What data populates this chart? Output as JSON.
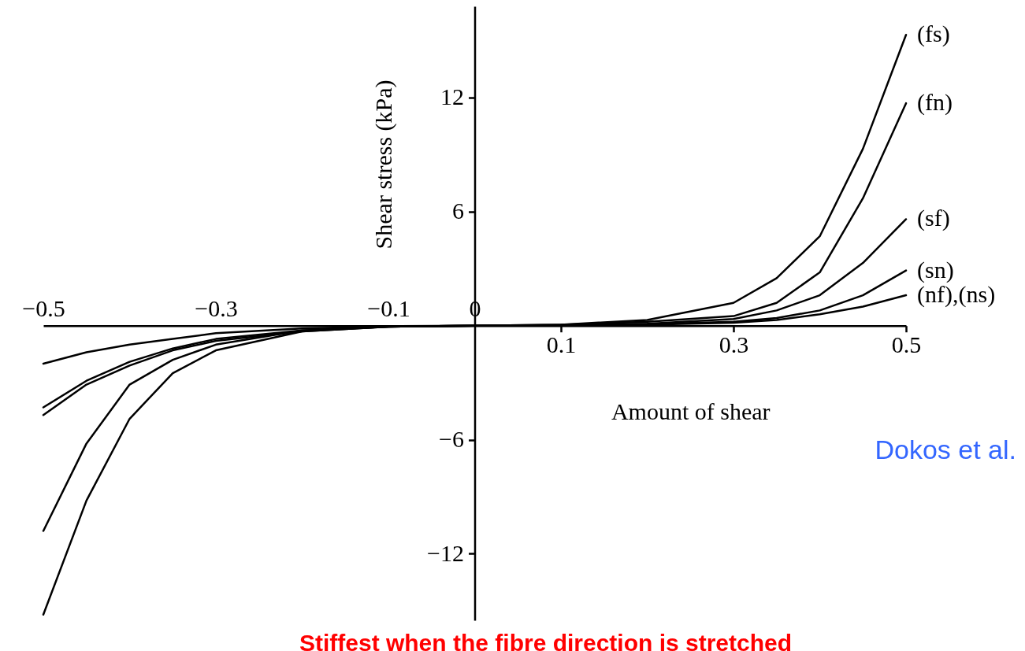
{
  "chart_data": {
    "type": "line",
    "xlabel": "Amount of shear",
    "ylabel": "Shear stress (kPa)",
    "x": [
      -0.5,
      -0.45,
      -0.4,
      -0.35,
      -0.3,
      -0.2,
      -0.1,
      0,
      0.1,
      0.2,
      0.3,
      0.35,
      0.4,
      0.45,
      0.5
    ],
    "series": [
      {
        "name": "(fs)",
        "color": "#000000",
        "values": [
          -15.2,
          -9.2,
          -4.9,
          -2.5,
          -1.3,
          -0.3,
          -0.05,
          0,
          0.05,
          0.3,
          1.2,
          2.5,
          4.7,
          9.3,
          15.3
        ]
      },
      {
        "name": "(fn)",
        "color": "#000000",
        "values": [
          -10.8,
          -6.2,
          -3.1,
          -1.8,
          -1.0,
          -0.25,
          -0.05,
          0,
          0.05,
          0.2,
          0.5,
          1.2,
          2.8,
          6.7,
          11.7
        ]
      },
      {
        "name": "(sf)",
        "color": "#000000",
        "values": [
          -4.7,
          -3.1,
          -2.1,
          -1.3,
          -0.8,
          -0.3,
          -0.05,
          0,
          0.03,
          0.1,
          0.35,
          0.8,
          1.6,
          3.3,
          5.6
        ]
      },
      {
        "name": "(sn)",
        "color": "#000000",
        "values": [
          -4.3,
          -2.9,
          -1.9,
          -1.2,
          -0.7,
          -0.25,
          -0.05,
          0,
          0.02,
          0.08,
          0.2,
          0.4,
          0.8,
          1.6,
          2.9
        ]
      },
      {
        "name": "(nf),(ns)",
        "color": "#000000",
        "values": [
          -2.0,
          -1.4,
          -1.0,
          -0.7,
          -0.4,
          -0.15,
          -0.03,
          0,
          0.01,
          0.05,
          0.15,
          0.3,
          0.6,
          1.0,
          1.6
        ]
      }
    ],
    "xlim": [
      -0.5,
      0.5
    ],
    "xticks": [
      0.1,
      0.3,
      0.5
    ],
    "x2lim": [
      -0.5,
      0.5
    ],
    "x2ticks": [
      -0.5,
      -0.3,
      -0.1,
      0
    ],
    "ylim": [
      -15.5,
      16.8
    ],
    "yticks": [
      -12,
      -6,
      6,
      12
    ],
    "line_style": "solid",
    "marker": "none",
    "grid": false,
    "annotations": [
      "Dokos et al.",
      "Stiffest when the fibre direction is stretched"
    ]
  }
}
